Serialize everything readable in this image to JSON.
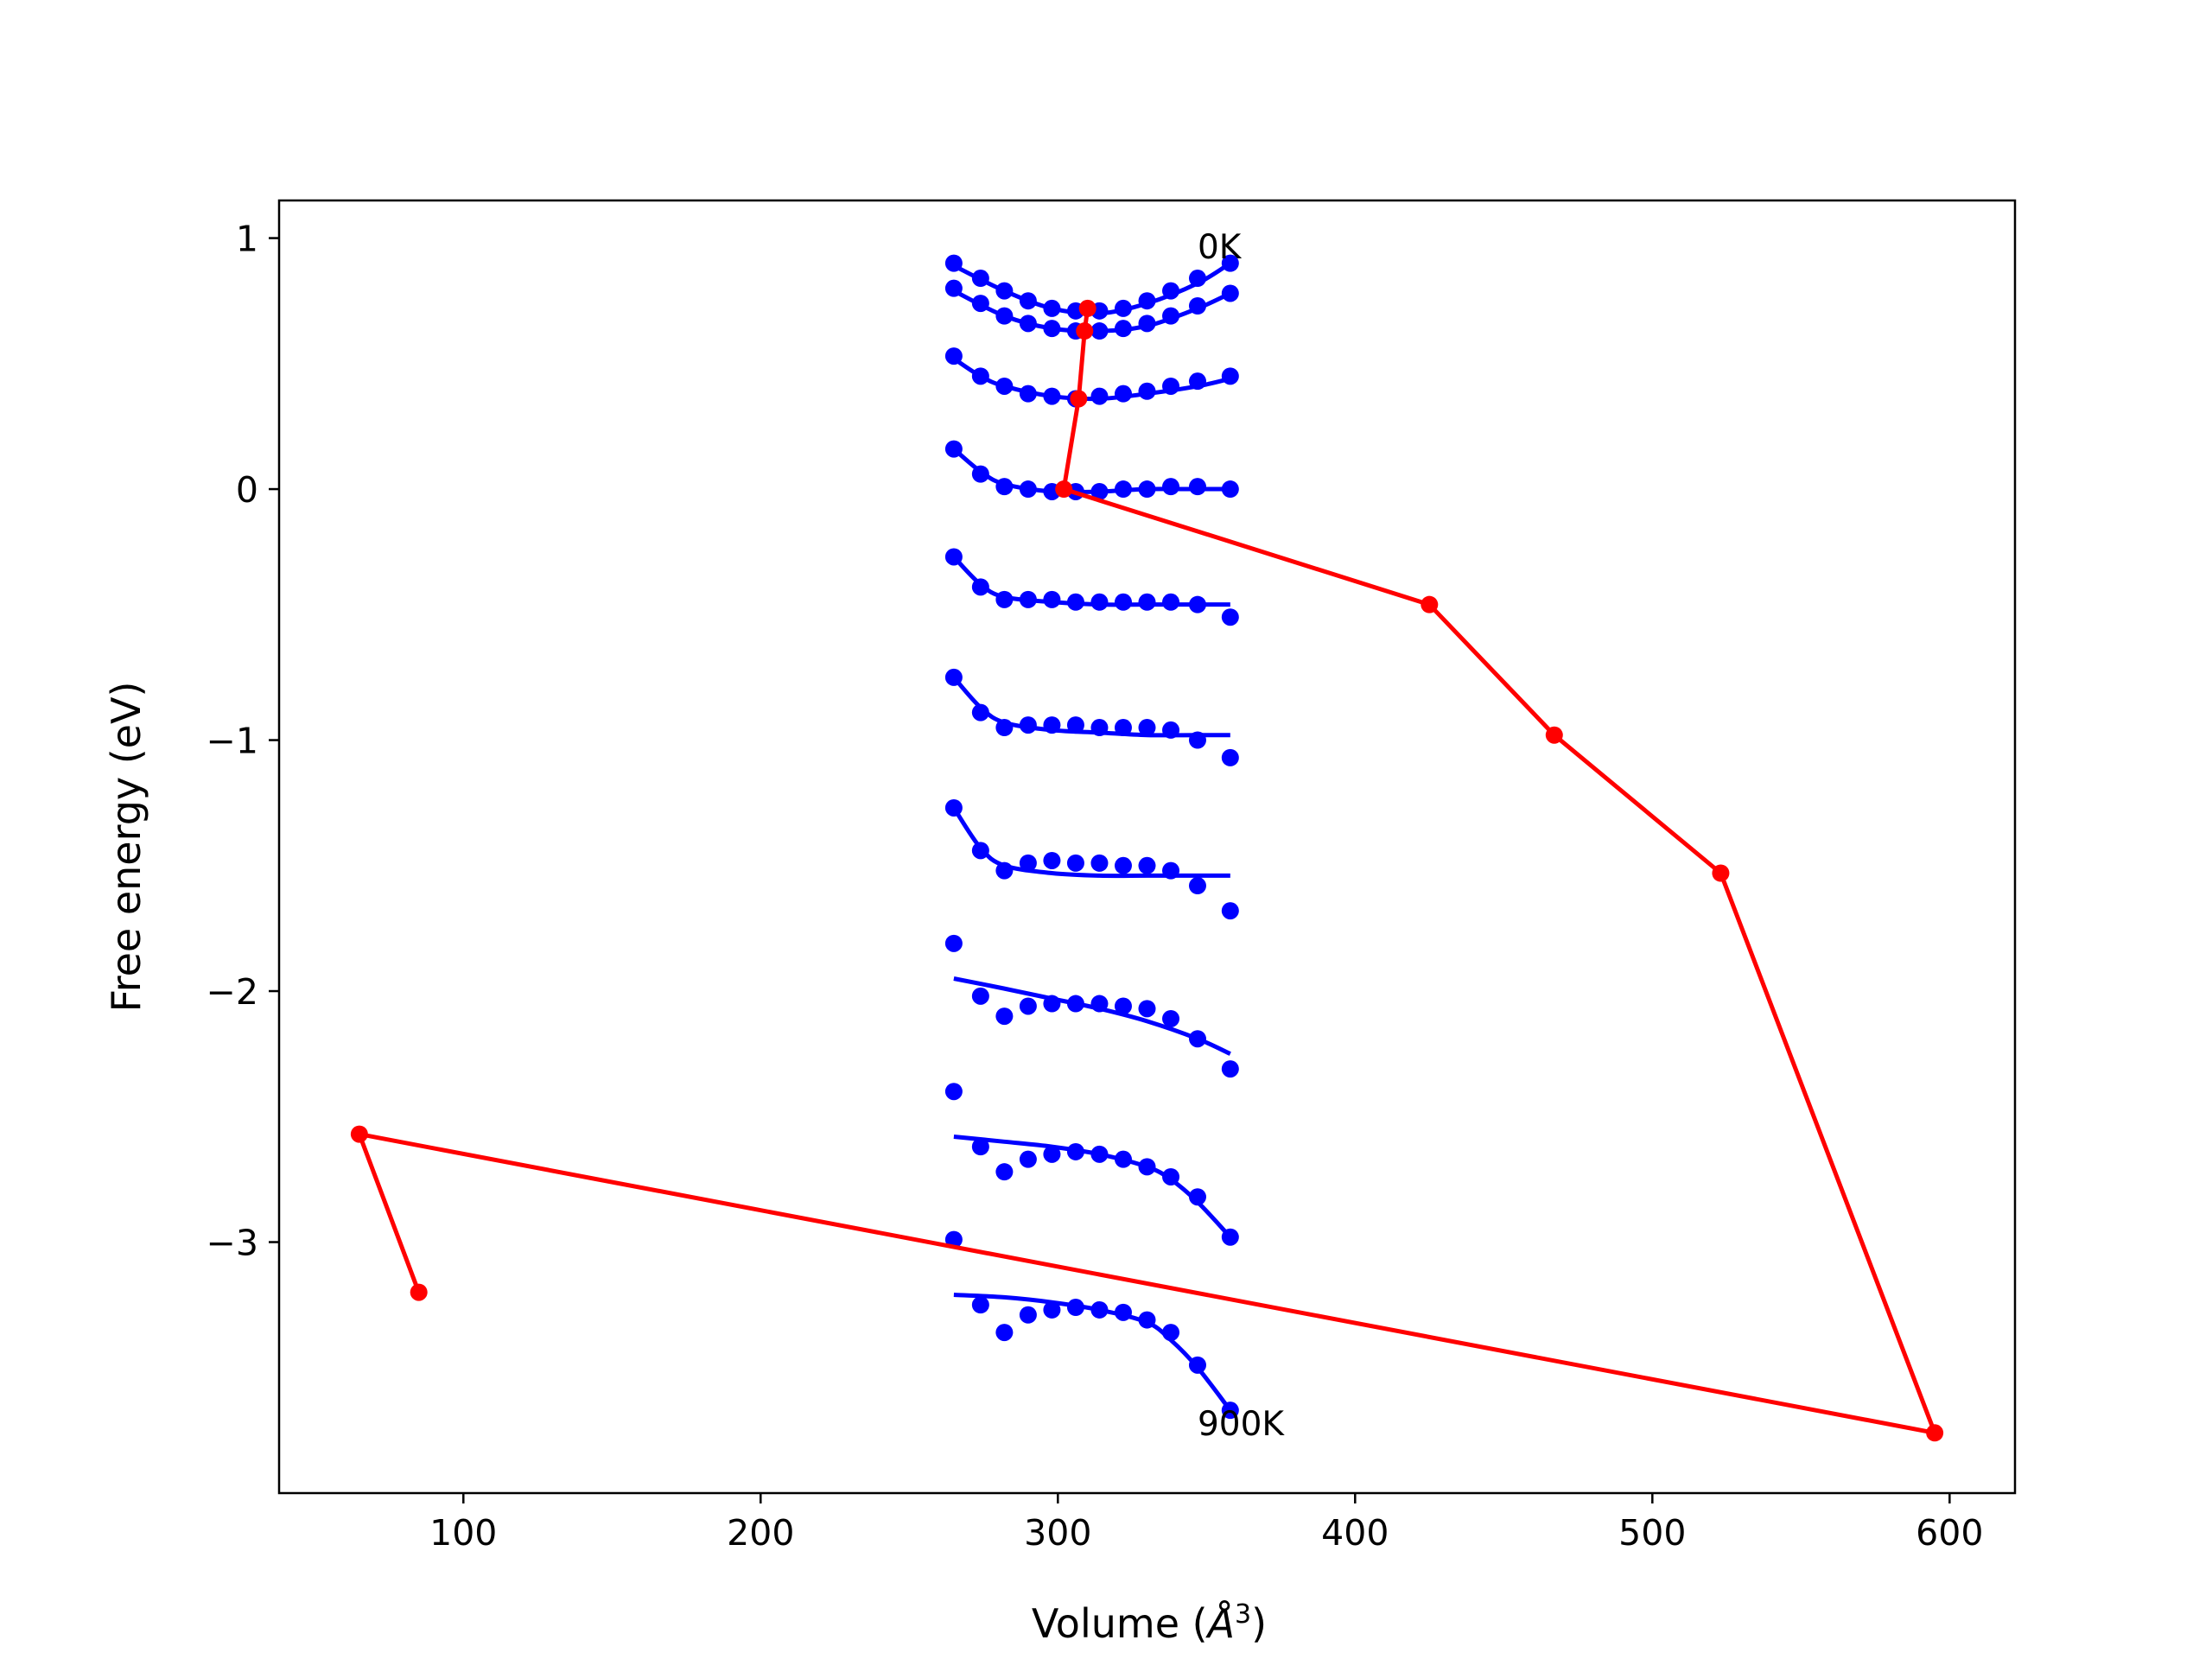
{
  "chart_data": {
    "type": "line",
    "title": "",
    "xlabel": "Volume ($\\AA^3$)",
    "xlabel_prefix": "Volume (",
    "xlabel_unit": "Å",
    "xlabel_exp": "3",
    "xlabel_suffix": ")",
    "ylabel": "Free energy (eV)",
    "xlim": [
      38,
      622
    ],
    "ylim": [
      -4.0,
      1.15
    ],
    "xticks": [
      100,
      200,
      300,
      400,
      500,
      600
    ],
    "xtick_labels": [
      "100",
      "200",
      "300",
      "400",
      "500",
      "600"
    ],
    "yticks": [
      1,
      0,
      -1,
      -2,
      -3
    ],
    "ytick_labels": [
      "1",
      "0",
      "−1",
      "−2",
      "−3"
    ],
    "grid": false,
    "colors": {
      "points": "#0000ff",
      "fit": "#0000ff",
      "minima": "#ff0000",
      "frame": "#000000"
    },
    "annotations": [
      {
        "text": "0K",
        "x": 347,
        "y": 0.92
      },
      {
        "text": "900K",
        "x": 347,
        "y": -3.77
      }
    ],
    "volumes": [
      265,
      274,
      282,
      290,
      298,
      306,
      314,
      322,
      330,
      338,
      347,
      358
    ],
    "point_series": [
      [
        0.9,
        0.84,
        0.79,
        0.75,
        0.72,
        0.71,
        0.71,
        0.72,
        0.75,
        0.79,
        0.84,
        0.9
      ],
      [
        0.8,
        0.74,
        0.69,
        0.66,
        0.64,
        0.63,
        0.63,
        0.64,
        0.66,
        0.69,
        0.73,
        0.78
      ],
      [
        0.53,
        0.45,
        0.41,
        0.38,
        0.37,
        0.36,
        0.37,
        0.38,
        0.39,
        0.41,
        0.43,
        0.45
      ],
      [
        0.16,
        0.06,
        0.01,
        0.0,
        -0.01,
        -0.01,
        -0.01,
        0.0,
        0.0,
        0.01,
        0.01,
        0.0
      ],
      [
        -0.27,
        -0.39,
        -0.44,
        -0.44,
        -0.44,
        -0.45,
        -0.45,
        -0.45,
        -0.45,
        -0.45,
        -0.46,
        -0.51
      ],
      [
        -0.75,
        -0.89,
        -0.95,
        -0.94,
        -0.94,
        -0.94,
        -0.95,
        -0.95,
        -0.95,
        -0.96,
        -1.0,
        -1.07
      ],
      [
        -1.27,
        -1.44,
        -1.52,
        -1.49,
        -1.48,
        -1.49,
        -1.49,
        -1.5,
        -1.5,
        -1.52,
        -1.58,
        -1.68
      ],
      [
        -1.81,
        -2.02,
        -2.1,
        -2.06,
        -2.05,
        -2.05,
        -2.05,
        -2.06,
        -2.07,
        -2.11,
        -2.19,
        -2.31
      ],
      [
        -2.4,
        -2.62,
        -2.72,
        -2.67,
        -2.65,
        -2.64,
        -2.65,
        -2.67,
        -2.7,
        -2.74,
        -2.82,
        -2.98
      ],
      [
        -2.99,
        -3.25,
        -3.36,
        -3.29,
        -3.27,
        -3.26,
        -3.27,
        -3.28,
        -3.31,
        -3.36,
        -3.49,
        -3.67
      ]
    ],
    "fit_series": [
      {
        "x": [
          265,
          282,
          298,
          314,
          330,
          347,
          358
        ],
        "y": [
          0.89,
          0.79,
          0.72,
          0.7,
          0.74,
          0.82,
          0.9
        ]
      },
      {
        "x": [
          265,
          282,
          298,
          314,
          330,
          347,
          358
        ],
        "y": [
          0.79,
          0.69,
          0.64,
          0.63,
          0.65,
          0.72,
          0.78
        ]
      },
      {
        "x": [
          265,
          274,
          282,
          298,
          314,
          330,
          347,
          358
        ],
        "y": [
          0.52,
          0.45,
          0.41,
          0.37,
          0.36,
          0.38,
          0.41,
          0.44
        ]
      },
      {
        "x": [
          265,
          274,
          282,
          298,
          314,
          330,
          347,
          358
        ],
        "y": [
          0.16,
          0.07,
          0.02,
          -0.01,
          -0.01,
          0.0,
          0.0,
          0.0
        ]
      },
      {
        "x": [
          265,
          274,
          282,
          298,
          314,
          330,
          347,
          358
        ],
        "y": [
          -0.27,
          -0.38,
          -0.43,
          -0.45,
          -0.46,
          -0.46,
          -0.46,
          -0.46
        ]
      },
      {
        "x": [
          265,
          274,
          282,
          298,
          314,
          330,
          347,
          358
        ],
        "y": [
          -0.75,
          -0.87,
          -0.93,
          -0.96,
          -0.97,
          -0.98,
          -0.98,
          -0.98
        ]
      },
      {
        "x": [
          265,
          274,
          282,
          298,
          314,
          330,
          347,
          358
        ],
        "y": [
          -1.27,
          -1.43,
          -1.5,
          -1.53,
          -1.54,
          -1.54,
          -1.54,
          -1.54
        ]
      },
      {
        "x": [
          265,
          282,
          298,
          314,
          330,
          347,
          358
        ],
        "y": [
          -1.95,
          -1.99,
          -2.03,
          -2.07,
          -2.12,
          -2.19,
          -2.25
        ]
      },
      {
        "x": [
          265,
          282,
          298,
          314,
          330,
          338,
          347,
          358
        ],
        "y": [
          -2.58,
          -2.6,
          -2.62,
          -2.65,
          -2.7,
          -2.75,
          -2.84,
          -2.98
        ]
      },
      {
        "x": [
          265,
          282,
          298,
          314,
          330,
          338,
          347,
          358
        ],
        "y": [
          -3.21,
          -3.22,
          -3.24,
          -3.27,
          -3.32,
          -3.39,
          -3.5,
          -3.67
        ]
      }
    ],
    "minima": {
      "x": [
        310,
        309,
        307,
        302,
        425,
        467,
        523,
        595,
        65,
        85
      ],
      "y": [
        0.72,
        0.63,
        0.36,
        0.0,
        -0.46,
        -0.98,
        -1.53,
        -3.76,
        -2.57,
        -3.2
      ]
    }
  }
}
